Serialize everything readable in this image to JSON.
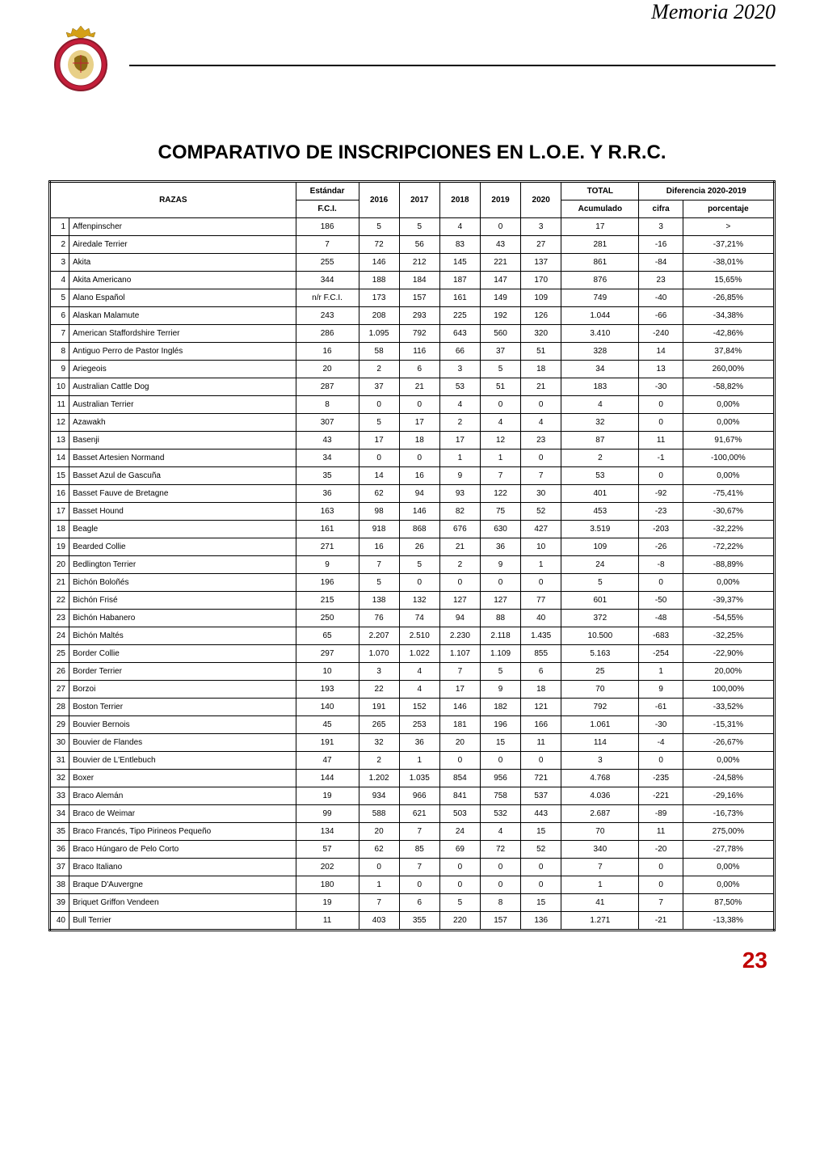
{
  "header": {
    "memoria": "Memoria 2020"
  },
  "title": "COMPARATIVO DE INSCRIPCIONES EN L.O.E. Y R.R.C.",
  "columns": {
    "razas": "RAZAS",
    "estandar": "Estándar",
    "fci": "F.C.I.",
    "y2016": "2016",
    "y2017": "2017",
    "y2018": "2018",
    "y2019": "2019",
    "y2020": "2020",
    "total": "TOTAL",
    "acumulado": "Acumulado",
    "diferencia": "Diferencia 2020-2019",
    "cifra": "cifra",
    "porcentaje": "porcentaje"
  },
  "rows": [
    {
      "n": "1",
      "raza": "Affenpinscher",
      "fci": "186",
      "y16": "5",
      "y17": "5",
      "y18": "4",
      "y19": "0",
      "y20": "3",
      "tot": "17",
      "cif": "3",
      "pct": ">"
    },
    {
      "n": "2",
      "raza": "Airedale Terrier",
      "fci": "7",
      "y16": "72",
      "y17": "56",
      "y18": "83",
      "y19": "43",
      "y20": "27",
      "tot": "281",
      "cif": "-16",
      "pct": "-37,21%"
    },
    {
      "n": "3",
      "raza": "Akita",
      "fci": "255",
      "y16": "146",
      "y17": "212",
      "y18": "145",
      "y19": "221",
      "y20": "137",
      "tot": "861",
      "cif": "-84",
      "pct": "-38,01%"
    },
    {
      "n": "4",
      "raza": "Akita Americano",
      "fci": "344",
      "y16": "188",
      "y17": "184",
      "y18": "187",
      "y19": "147",
      "y20": "170",
      "tot": "876",
      "cif": "23",
      "pct": "15,65%"
    },
    {
      "n": "5",
      "raza": "Alano Español",
      "fci": "n/r F.C.I.",
      "y16": "173",
      "y17": "157",
      "y18": "161",
      "y19": "149",
      "y20": "109",
      "tot": "749",
      "cif": "-40",
      "pct": "-26,85%"
    },
    {
      "n": "6",
      "raza": "Alaskan Malamute",
      "fci": "243",
      "y16": "208",
      "y17": "293",
      "y18": "225",
      "y19": "192",
      "y20": "126",
      "tot": "1.044",
      "cif": "-66",
      "pct": "-34,38%"
    },
    {
      "n": "7",
      "raza": "American Staffordshire Terrier",
      "fci": "286",
      "y16": "1.095",
      "y17": "792",
      "y18": "643",
      "y19": "560",
      "y20": "320",
      "tot": "3.410",
      "cif": "-240",
      "pct": "-42,86%"
    },
    {
      "n": "8",
      "raza": "Antiguo Perro de Pastor Inglés",
      "fci": "16",
      "y16": "58",
      "y17": "116",
      "y18": "66",
      "y19": "37",
      "y20": "51",
      "tot": "328",
      "cif": "14",
      "pct": "37,84%"
    },
    {
      "n": "9",
      "raza": "Ariegeois",
      "fci": "20",
      "y16": "2",
      "y17": "6",
      "y18": "3",
      "y19": "5",
      "y20": "18",
      "tot": "34",
      "cif": "13",
      "pct": "260,00%"
    },
    {
      "n": "10",
      "raza": "Australian Cattle Dog",
      "fci": "287",
      "y16": "37",
      "y17": "21",
      "y18": "53",
      "y19": "51",
      "y20": "21",
      "tot": "183",
      "cif": "-30",
      "pct": "-58,82%"
    },
    {
      "n": "11",
      "raza": "Australian Terrier",
      "fci": "8",
      "y16": "0",
      "y17": "0",
      "y18": "4",
      "y19": "0",
      "y20": "0",
      "tot": "4",
      "cif": "0",
      "pct": "0,00%"
    },
    {
      "n": "12",
      "raza": "Azawakh",
      "fci": "307",
      "y16": "5",
      "y17": "17",
      "y18": "2",
      "y19": "4",
      "y20": "4",
      "tot": "32",
      "cif": "0",
      "pct": "0,00%"
    },
    {
      "n": "13",
      "raza": "Basenji",
      "fci": "43",
      "y16": "17",
      "y17": "18",
      "y18": "17",
      "y19": "12",
      "y20": "23",
      "tot": "87",
      "cif": "11",
      "pct": "91,67%"
    },
    {
      "n": "14",
      "raza": "Basset Artesien Normand",
      "fci": "34",
      "y16": "0",
      "y17": "0",
      "y18": "1",
      "y19": "1",
      "y20": "0",
      "tot": "2",
      "cif": "-1",
      "pct": "-100,00%"
    },
    {
      "n": "15",
      "raza": "Basset Azul de Gascuña",
      "fci": "35",
      "y16": "14",
      "y17": "16",
      "y18": "9",
      "y19": "7",
      "y20": "7",
      "tot": "53",
      "cif": "0",
      "pct": "0,00%"
    },
    {
      "n": "16",
      "raza": "Basset Fauve de Bretagne",
      "fci": "36",
      "y16": "62",
      "y17": "94",
      "y18": "93",
      "y19": "122",
      "y20": "30",
      "tot": "401",
      "cif": "-92",
      "pct": "-75,41%"
    },
    {
      "n": "17",
      "raza": "Basset Hound",
      "fci": "163",
      "y16": "98",
      "y17": "146",
      "y18": "82",
      "y19": "75",
      "y20": "52",
      "tot": "453",
      "cif": "-23",
      "pct": "-30,67%"
    },
    {
      "n": "18",
      "raza": "Beagle",
      "fci": "161",
      "y16": "918",
      "y17": "868",
      "y18": "676",
      "y19": "630",
      "y20": "427",
      "tot": "3.519",
      "cif": "-203",
      "pct": "-32,22%"
    },
    {
      "n": "19",
      "raza": "Bearded Collie",
      "fci": "271",
      "y16": "16",
      "y17": "26",
      "y18": "21",
      "y19": "36",
      "y20": "10",
      "tot": "109",
      "cif": "-26",
      "pct": "-72,22%"
    },
    {
      "n": "20",
      "raza": "Bedlington Terrier",
      "fci": "9",
      "y16": "7",
      "y17": "5",
      "y18": "2",
      "y19": "9",
      "y20": "1",
      "tot": "24",
      "cif": "-8",
      "pct": "-88,89%"
    },
    {
      "n": "21",
      "raza": "Bichón Boloñés",
      "fci": "196",
      "y16": "5",
      "y17": "0",
      "y18": "0",
      "y19": "0",
      "y20": "0",
      "tot": "5",
      "cif": "0",
      "pct": "0,00%"
    },
    {
      "n": "22",
      "raza": "Bichón Frisé",
      "fci": "215",
      "y16": "138",
      "y17": "132",
      "y18": "127",
      "y19": "127",
      "y20": "77",
      "tot": "601",
      "cif": "-50",
      "pct": "-39,37%"
    },
    {
      "n": "23",
      "raza": "Bichón Habanero",
      "fci": "250",
      "y16": "76",
      "y17": "74",
      "y18": "94",
      "y19": "88",
      "y20": "40",
      "tot": "372",
      "cif": "-48",
      "pct": "-54,55%"
    },
    {
      "n": "24",
      "raza": "Bichón Maltés",
      "fci": "65",
      "y16": "2.207",
      "y17": "2.510",
      "y18": "2.230",
      "y19": "2.118",
      "y20": "1.435",
      "tot": "10.500",
      "cif": "-683",
      "pct": "-32,25%"
    },
    {
      "n": "25",
      "raza": "Border Collie",
      "fci": "297",
      "y16": "1.070",
      "y17": "1.022",
      "y18": "1.107",
      "y19": "1.109",
      "y20": "855",
      "tot": "5.163",
      "cif": "-254",
      "pct": "-22,90%"
    },
    {
      "n": "26",
      "raza": "Border Terrier",
      "fci": "10",
      "y16": "3",
      "y17": "4",
      "y18": "7",
      "y19": "5",
      "y20": "6",
      "tot": "25",
      "cif": "1",
      "pct": "20,00%"
    },
    {
      "n": "27",
      "raza": "Borzoi",
      "fci": "193",
      "y16": "22",
      "y17": "4",
      "y18": "17",
      "y19": "9",
      "y20": "18",
      "tot": "70",
      "cif": "9",
      "pct": "100,00%"
    },
    {
      "n": "28",
      "raza": "Boston Terrier",
      "fci": "140",
      "y16": "191",
      "y17": "152",
      "y18": "146",
      "y19": "182",
      "y20": "121",
      "tot": "792",
      "cif": "-61",
      "pct": "-33,52%"
    },
    {
      "n": "29",
      "raza": "Bouvier Bernois",
      "fci": "45",
      "y16": "265",
      "y17": "253",
      "y18": "181",
      "y19": "196",
      "y20": "166",
      "tot": "1.061",
      "cif": "-30",
      "pct": "-15,31%"
    },
    {
      "n": "30",
      "raza": "Bouvier de Flandes",
      "fci": "191",
      "y16": "32",
      "y17": "36",
      "y18": "20",
      "y19": "15",
      "y20": "11",
      "tot": "114",
      "cif": "-4",
      "pct": "-26,67%"
    },
    {
      "n": "31",
      "raza": "Bouvier de L'Entlebuch",
      "fci": "47",
      "y16": "2",
      "y17": "1",
      "y18": "0",
      "y19": "0",
      "y20": "0",
      "tot": "3",
      "cif": "0",
      "pct": "0,00%"
    },
    {
      "n": "32",
      "raza": "Boxer",
      "fci": "144",
      "y16": "1.202",
      "y17": "1.035",
      "y18": "854",
      "y19": "956",
      "y20": "721",
      "tot": "4.768",
      "cif": "-235",
      "pct": "-24,58%"
    },
    {
      "n": "33",
      "raza": "Braco Alemán",
      "fci": "19",
      "y16": "934",
      "y17": "966",
      "y18": "841",
      "y19": "758",
      "y20": "537",
      "tot": "4.036",
      "cif": "-221",
      "pct": "-29,16%"
    },
    {
      "n": "34",
      "raza": "Braco de Weimar",
      "fci": "99",
      "y16": "588",
      "y17": "621",
      "y18": "503",
      "y19": "532",
      "y20": "443",
      "tot": "2.687",
      "cif": "-89",
      "pct": "-16,73%"
    },
    {
      "n": "35",
      "raza": "Braco Francés, Tipo Pirineos Pequeño",
      "fci": "134",
      "y16": "20",
      "y17": "7",
      "y18": "24",
      "y19": "4",
      "y20": "15",
      "tot": "70",
      "cif": "11",
      "pct": "275,00%"
    },
    {
      "n": "36",
      "raza": "Braco Húngaro de Pelo Corto",
      "fci": "57",
      "y16": "62",
      "y17": "85",
      "y18": "69",
      "y19": "72",
      "y20": "52",
      "tot": "340",
      "cif": "-20",
      "pct": "-27,78%"
    },
    {
      "n": "37",
      "raza": "Braco Italiano",
      "fci": "202",
      "y16": "0",
      "y17": "7",
      "y18": "0",
      "y19": "0",
      "y20": "0",
      "tot": "7",
      "cif": "0",
      "pct": "0,00%"
    },
    {
      "n": "38",
      "raza": "Braque D'Auvergne",
      "fci": "180",
      "y16": "1",
      "y17": "0",
      "y18": "0",
      "y19": "0",
      "y20": "0",
      "tot": "1",
      "cif": "0",
      "pct": "0,00%"
    },
    {
      "n": "39",
      "raza": "Briquet Griffon Vendeen",
      "fci": "19",
      "y16": "7",
      "y17": "6",
      "y18": "5",
      "y19": "8",
      "y20": "15",
      "tot": "41",
      "cif": "7",
      "pct": "87,50%"
    },
    {
      "n": "40",
      "raza": "Bull Terrier",
      "fci": "11",
      "y16": "403",
      "y17": "355",
      "y18": "220",
      "y19": "157",
      "y20": "136",
      "tot": "1.271",
      "cif": "-21",
      "pct": "-13,38%"
    }
  ],
  "pageNumber": "23",
  "style": {
    "accent_color": "#c00000",
    "crown_gold": "#d4a017",
    "shield_red": "#c41e3a",
    "shield_blue": "#003399"
  }
}
